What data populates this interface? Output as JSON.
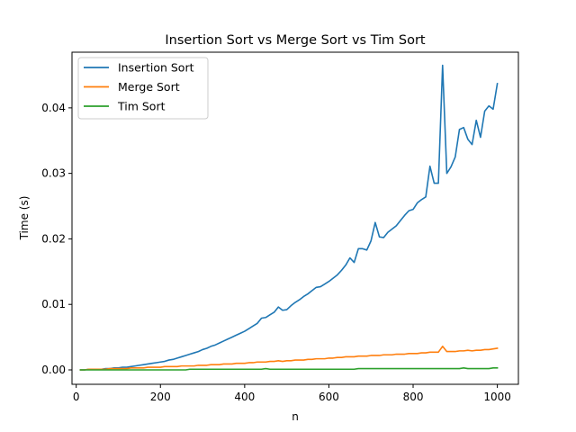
{
  "chart_data": {
    "type": "line",
    "title": "Insertion Sort vs Merge Sort vs Tim Sort",
    "xlabel": "n",
    "ylabel": "Time (s)",
    "xlim": [
      -10,
      1050
    ],
    "ylim": [
      -0.0022,
      0.0485
    ],
    "xticks": [
      0,
      200,
      400,
      600,
      800,
      1000
    ],
    "xtick_labels": [
      "0",
      "200",
      "400",
      "600",
      "800",
      "1000"
    ],
    "yticks": [
      0,
      0.01,
      0.02,
      0.03,
      0.04
    ],
    "ytick_labels": [
      "0.00",
      "0.01",
      "0.02",
      "0.03",
      "0.04"
    ],
    "grid": false,
    "legend_position": "top-left",
    "x": [
      10,
      20,
      30,
      40,
      50,
      60,
      70,
      80,
      90,
      100,
      110,
      120,
      130,
      140,
      150,
      160,
      170,
      180,
      190,
      200,
      210,
      220,
      230,
      240,
      250,
      260,
      270,
      280,
      290,
      300,
      310,
      320,
      330,
      340,
      350,
      360,
      370,
      380,
      390,
      400,
      410,
      420,
      430,
      440,
      450,
      460,
      470,
      480,
      490,
      500,
      510,
      520,
      530,
      540,
      550,
      560,
      570,
      580,
      590,
      600,
      610,
      620,
      630,
      640,
      650,
      660,
      670,
      680,
      690,
      700,
      710,
      720,
      730,
      740,
      750,
      760,
      770,
      780,
      790,
      800,
      810,
      820,
      830,
      840,
      850,
      860,
      870,
      880,
      890,
      900,
      910,
      920,
      930,
      940,
      950,
      960,
      970,
      980,
      990,
      1000
    ],
    "series": [
      {
        "name": "Insertion Sort",
        "color": "#1f77b4",
        "values": [
          0.0,
          0.0,
          0.0001,
          0.0001,
          0.0001,
          0.0001,
          0.0002,
          0.0002,
          0.0003,
          0.0003,
          0.0004,
          0.0004,
          0.0005,
          0.0006,
          0.0007,
          0.0008,
          0.0009,
          0.001,
          0.0011,
          0.0012,
          0.0013,
          0.0015,
          0.0016,
          0.0018,
          0.002,
          0.0022,
          0.0024,
          0.0026,
          0.0028,
          0.0031,
          0.0033,
          0.0036,
          0.0038,
          0.0041,
          0.0044,
          0.0047,
          0.005,
          0.0053,
          0.0056,
          0.0059,
          0.0063,
          0.0067,
          0.0071,
          0.0079,
          0.008,
          0.0084,
          0.0088,
          0.0096,
          0.0091,
          0.0092,
          0.0098,
          0.0103,
          0.0107,
          0.0112,
          0.0116,
          0.0121,
          0.0126,
          0.0127,
          0.0131,
          0.0135,
          0.014,
          0.0145,
          0.0152,
          0.016,
          0.0171,
          0.0164,
          0.0185,
          0.0185,
          0.0183,
          0.0197,
          0.0225,
          0.0203,
          0.0202,
          0.021,
          0.0215,
          0.022,
          0.0228,
          0.0236,
          0.0243,
          0.0245,
          0.0255,
          0.026,
          0.0264,
          0.0311,
          0.0285,
          0.0285,
          0.0465,
          0.03,
          0.031,
          0.0325,
          0.0367,
          0.037,
          0.0352,
          0.0344,
          0.0381,
          0.0355,
          0.0395,
          0.0403,
          0.0398,
          0.0437
        ]
      },
      {
        "name": "Merge Sort",
        "color": "#ff7f0e",
        "values": [
          0.0,
          0.0,
          0.0001,
          0.0001,
          0.0001,
          0.0001,
          0.0001,
          0.0002,
          0.0002,
          0.0002,
          0.0002,
          0.0002,
          0.0003,
          0.0003,
          0.0003,
          0.0003,
          0.0004,
          0.0004,
          0.0004,
          0.0004,
          0.0005,
          0.0005,
          0.0005,
          0.0005,
          0.0006,
          0.0006,
          0.0006,
          0.0006,
          0.0007,
          0.0007,
          0.0007,
          0.0008,
          0.0008,
          0.0008,
          0.0009,
          0.0009,
          0.0009,
          0.001,
          0.001,
          0.001,
          0.0011,
          0.0011,
          0.0012,
          0.0012,
          0.0012,
          0.0013,
          0.0013,
          0.0014,
          0.0013,
          0.0014,
          0.0014,
          0.0015,
          0.0015,
          0.0015,
          0.0016,
          0.0016,
          0.0017,
          0.0017,
          0.0017,
          0.0018,
          0.0018,
          0.0019,
          0.0019,
          0.002,
          0.002,
          0.002,
          0.0021,
          0.0021,
          0.0021,
          0.0022,
          0.0022,
          0.0022,
          0.0023,
          0.0023,
          0.0023,
          0.0024,
          0.0024,
          0.0024,
          0.0025,
          0.0025,
          0.0025,
          0.0026,
          0.0026,
          0.0027,
          0.0027,
          0.0027,
          0.0036,
          0.0028,
          0.0028,
          0.0028,
          0.0029,
          0.0029,
          0.003,
          0.0029,
          0.003,
          0.003,
          0.0031,
          0.0031,
          0.0032,
          0.0033
        ]
      },
      {
        "name": "Tim Sort",
        "color": "#2ca02c",
        "values": [
          0.0,
          0.0,
          0.0,
          0.0,
          0.0,
          0.0,
          0.0,
          0.0,
          0.0,
          0.0,
          0.0,
          0.0,
          0.0,
          0.0,
          0.0,
          0.0,
          0.0,
          0.0,
          0.0,
          0.0,
          0.0,
          0.0,
          0.0,
          0.0,
          0.0,
          0.0,
          0.0001,
          0.0001,
          0.0001,
          0.0001,
          0.0001,
          0.0001,
          0.0001,
          0.0001,
          0.0001,
          0.0001,
          0.0001,
          0.0001,
          0.0001,
          0.0001,
          0.0001,
          0.0001,
          0.0001,
          0.0001,
          0.0002,
          0.0001,
          0.0001,
          0.0001,
          0.0001,
          0.0001,
          0.0001,
          0.0001,
          0.0001,
          0.0001,
          0.0001,
          0.0001,
          0.0001,
          0.0001,
          0.0001,
          0.0001,
          0.0001,
          0.0001,
          0.0001,
          0.0001,
          0.0001,
          0.0001,
          0.0002,
          0.0002,
          0.0002,
          0.0002,
          0.0002,
          0.0002,
          0.0002,
          0.0002,
          0.0002,
          0.0002,
          0.0002,
          0.0002,
          0.0002,
          0.0002,
          0.0002,
          0.0002,
          0.0002,
          0.0002,
          0.0002,
          0.0002,
          0.0002,
          0.0002,
          0.0002,
          0.0002,
          0.0002,
          0.0003,
          0.0002,
          0.0002,
          0.0002,
          0.0002,
          0.0002,
          0.0002,
          0.0003,
          0.0003
        ]
      }
    ]
  }
}
